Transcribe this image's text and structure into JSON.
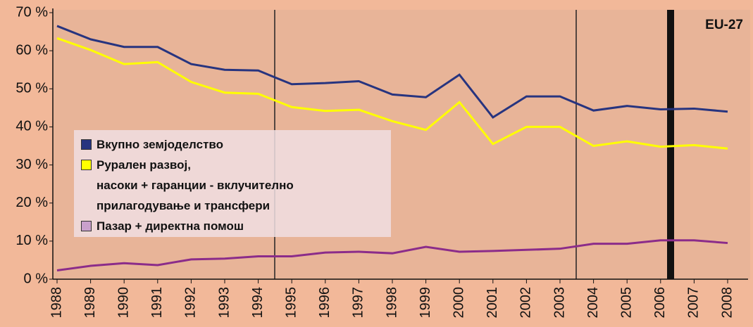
{
  "chart_data": {
    "type": "line",
    "annotation": "EU-27",
    "categories": [
      "1988",
      "1989",
      "1990",
      "1991",
      "1992",
      "1993",
      "1994",
      "1995",
      "1996",
      "1997",
      "1998",
      "1999",
      "2000",
      "2001",
      "2002",
      "2003",
      "2004",
      "2005",
      "2006",
      "2007",
      "2008"
    ],
    "series": [
      {
        "name": "Вкупно земјоделство",
        "color": "#27347f",
        "values": [
          66.5,
          63,
          61,
          61,
          56.5,
          55,
          54.8,
          51.2,
          51.5,
          52,
          48.5,
          47.8,
          53.7,
          42.5,
          48,
          48,
          44.3,
          45.5,
          44.6,
          44.8,
          44
        ]
      },
      {
        "name": "Рурален развој,\nнасоки + гаранции - вклучително\nприлагодување и трансфери",
        "color": "#ffff00",
        "values": [
          63.3,
          60.2,
          56.5,
          57,
          51.8,
          49,
          48.7,
          45.2,
          44.2,
          44.5,
          41.5,
          39.2,
          46.5,
          35.5,
          40,
          40,
          35,
          36.2,
          34.8,
          35.2,
          34.3
        ]
      },
      {
        "name": "Пазар + директна помош",
        "color": "#8b2c8a",
        "values": [
          2.3,
          3.5,
          4.2,
          3.7,
          5.2,
          5.4,
          6,
          6,
          7,
          7.2,
          6.8,
          8.5,
          7.2,
          7.4,
          7.7,
          8,
          9.3,
          9.3,
          10.2,
          10.2,
          9.5
        ]
      }
    ],
    "ylim": [
      0,
      70
    ],
    "yticks": [
      {
        "value": 0,
        "label": "0 %"
      },
      {
        "value": 10,
        "label": "10 %"
      },
      {
        "value": 20,
        "label": "20 %"
      },
      {
        "value": 30,
        "label": "30 %"
      },
      {
        "value": 40,
        "label": "40 %"
      },
      {
        "value": 50,
        "label": "50 %"
      },
      {
        "value": 60,
        "label": "60 %"
      },
      {
        "value": 70,
        "label": "70 %"
      }
    ],
    "grid": false
  }
}
